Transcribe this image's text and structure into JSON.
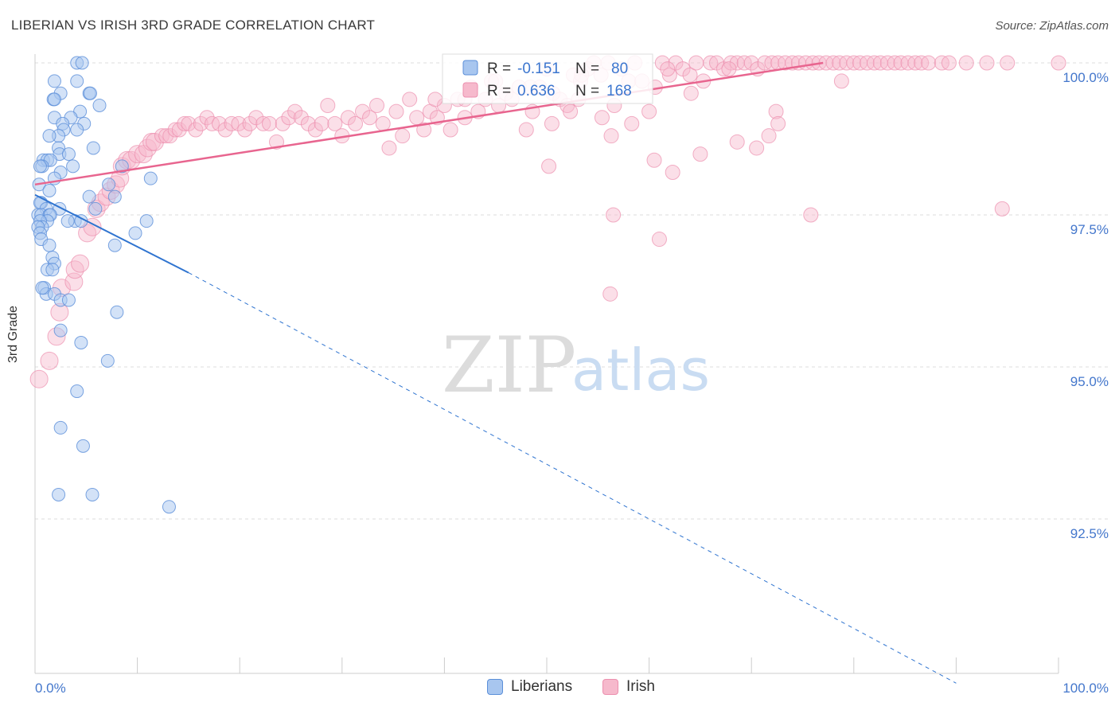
{
  "title": "LIBERIAN VS IRISH 3RD GRADE CORRELATION CHART",
  "source": "Source: ZipAtlas.com",
  "watermark": {
    "zip": "ZIP",
    "atlas": "atlas"
  },
  "colors": {
    "blue_fill": "#a8c6ef",
    "blue_stroke": "#5b8fd9",
    "blue_line": "#2f74d0",
    "pink_fill": "#f6b9cc",
    "pink_stroke": "#ec8fae",
    "pink_line": "#e8658f",
    "tick_text": "#4477cc",
    "grid": "#dddddd"
  },
  "stats": {
    "r_label": "R =",
    "n_label": "N =",
    "rows": [
      {
        "series": "Liberians",
        "r": "-0.151",
        "n": "80"
      },
      {
        "series": "Irish",
        "r": "0.636",
        "n": "168"
      }
    ]
  },
  "legend": {
    "items": [
      "Liberians",
      "Irish"
    ]
  },
  "chart_data": {
    "type": "scatter",
    "title": "LIBERIAN VS IRISH 3RD GRADE CORRELATION CHART",
    "xlabel": "",
    "ylabel": "3rd Grade",
    "xlim": [
      0,
      100
    ],
    "ylim": [
      89.8,
      100.4
    ],
    "x_tick_labels": [
      "0.0%",
      "100.0%"
    ],
    "y_ticks": [
      {
        "value": 100.0,
        "label": "100.0%"
      },
      {
        "value": 97.5,
        "label": "97.5%"
      },
      {
        "value": 95.0,
        "label": "95.0%"
      },
      {
        "value": 92.5,
        "label": "92.5%"
      }
    ],
    "series": [
      {
        "name": "Liberians",
        "r": -0.151,
        "n": 80,
        "trend": {
          "x0": 0,
          "y0": 97.83,
          "x1": 15,
          "y1": 96.55,
          "dashed_to_x": 90,
          "dashed_to_y": 89.8
        },
        "points": [
          [
            4.1,
            100.0
          ],
          [
            4.6,
            100.0
          ],
          [
            1.9,
            99.7
          ],
          [
            4.1,
            99.7
          ],
          [
            2.5,
            99.5
          ],
          [
            5.3,
            99.5
          ],
          [
            5.4,
            99.5
          ],
          [
            1.8,
            99.4
          ],
          [
            1.9,
            99.4
          ],
          [
            6.3,
            99.3
          ],
          [
            4.4,
            99.2
          ],
          [
            1.9,
            99.1
          ],
          [
            3.5,
            99.1
          ],
          [
            2.7,
            99.0
          ],
          [
            4.8,
            99.0
          ],
          [
            2.8,
            98.9
          ],
          [
            4.1,
            98.9
          ],
          [
            2.3,
            98.8
          ],
          [
            1.4,
            98.8
          ],
          [
            5.7,
            98.6
          ],
          [
            2.3,
            98.6
          ],
          [
            2.4,
            98.5
          ],
          [
            3.3,
            98.5
          ],
          [
            0.8,
            98.4
          ],
          [
            1.2,
            98.4
          ],
          [
            1.5,
            98.4
          ],
          [
            0.7,
            98.3
          ],
          [
            0.5,
            98.3
          ],
          [
            8.5,
            98.3
          ],
          [
            3.7,
            98.3
          ],
          [
            2.5,
            98.2
          ],
          [
            11.3,
            98.1
          ],
          [
            1.9,
            98.1
          ],
          [
            0.4,
            98.0
          ],
          [
            7.2,
            98.0
          ],
          [
            1.4,
            97.9
          ],
          [
            5.3,
            97.8
          ],
          [
            7.8,
            97.8
          ],
          [
            0.6,
            97.7
          ],
          [
            0.5,
            97.7
          ],
          [
            2.4,
            97.6
          ],
          [
            1.1,
            97.6
          ],
          [
            5.9,
            97.6
          ],
          [
            0.3,
            97.5
          ],
          [
            0.6,
            97.5
          ],
          [
            1.4,
            97.5
          ],
          [
            1.5,
            97.5
          ],
          [
            3.9,
            97.4
          ],
          [
            10.9,
            97.4
          ],
          [
            3.2,
            97.4
          ],
          [
            4.5,
            97.4
          ],
          [
            1.2,
            97.4
          ],
          [
            0.5,
            97.4
          ],
          [
            0.7,
            97.3
          ],
          [
            0.3,
            97.3
          ],
          [
            0.5,
            97.2
          ],
          [
            9.8,
            97.2
          ],
          [
            0.6,
            97.1
          ],
          [
            1.4,
            97.0
          ],
          [
            7.8,
            97.0
          ],
          [
            1.7,
            96.8
          ],
          [
            1.9,
            96.7
          ],
          [
            1.2,
            96.6
          ],
          [
            1.7,
            96.6
          ],
          [
            0.9,
            96.3
          ],
          [
            1.1,
            96.2
          ],
          [
            1.9,
            96.2
          ],
          [
            2.5,
            96.1
          ],
          [
            3.3,
            96.1
          ],
          [
            8.0,
            95.9
          ],
          [
            2.5,
            95.6
          ],
          [
            4.5,
            95.4
          ],
          [
            7.1,
            95.1
          ],
          [
            4.1,
            94.6
          ],
          [
            2.5,
            94.0
          ],
          [
            4.7,
            93.7
          ],
          [
            2.3,
            92.9
          ],
          [
            5.6,
            92.9
          ],
          [
            13.1,
            92.7
          ],
          [
            0.7,
            96.3
          ]
        ]
      },
      {
        "name": "Irish",
        "r": 0.636,
        "n": 168,
        "trend": {
          "x0": 0,
          "y0": 98.0,
          "x1": 77,
          "y1": 100.0
        },
        "points": [
          [
            0.4,
            94.8
          ],
          [
            1.4,
            95.1
          ],
          [
            2.1,
            95.5
          ],
          [
            2.4,
            95.9
          ],
          [
            2.6,
            96.3
          ],
          [
            3.8,
            96.4
          ],
          [
            3.9,
            96.6
          ],
          [
            4.4,
            96.7
          ],
          [
            5.1,
            97.2
          ],
          [
            5.6,
            97.3
          ],
          [
            6.0,
            97.6
          ],
          [
            6.4,
            97.7
          ],
          [
            7.0,
            97.8
          ],
          [
            7.4,
            97.9
          ],
          [
            7.9,
            98.0
          ],
          [
            8.3,
            98.1
          ],
          [
            8.5,
            98.3
          ],
          [
            9.0,
            98.4
          ],
          [
            9.4,
            98.4
          ],
          [
            10.0,
            98.5
          ],
          [
            10.6,
            98.5
          ],
          [
            11.0,
            98.6
          ],
          [
            11.4,
            98.7
          ],
          [
            11.7,
            98.7
          ],
          [
            12.4,
            98.8
          ],
          [
            12.8,
            98.8
          ],
          [
            13.2,
            98.8
          ],
          [
            13.7,
            98.9
          ],
          [
            14.1,
            98.9
          ],
          [
            14.6,
            99.0
          ],
          [
            15.0,
            99.0
          ],
          [
            15.7,
            98.9
          ],
          [
            16.2,
            99.0
          ],
          [
            16.8,
            99.1
          ],
          [
            17.3,
            99.0
          ],
          [
            18.0,
            99.0
          ],
          [
            18.6,
            98.9
          ],
          [
            19.2,
            99.0
          ],
          [
            19.9,
            99.0
          ],
          [
            20.5,
            98.9
          ],
          [
            21.0,
            99.0
          ],
          [
            21.6,
            99.1
          ],
          [
            22.3,
            99.0
          ],
          [
            22.9,
            99.0
          ],
          [
            23.6,
            98.7
          ],
          [
            24.2,
            99.0
          ],
          [
            24.8,
            99.1
          ],
          [
            25.4,
            99.2
          ],
          [
            26.0,
            99.1
          ],
          [
            26.7,
            99.0
          ],
          [
            27.4,
            98.9
          ],
          [
            28.0,
            99.0
          ],
          [
            28.6,
            99.3
          ],
          [
            29.3,
            99.0
          ],
          [
            30.0,
            98.8
          ],
          [
            30.6,
            99.1
          ],
          [
            31.3,
            99.0
          ],
          [
            32.0,
            99.2
          ],
          [
            32.7,
            99.1
          ],
          [
            33.4,
            99.3
          ],
          [
            34.0,
            99.0
          ],
          [
            34.6,
            98.6
          ],
          [
            35.3,
            99.2
          ],
          [
            35.9,
            98.8
          ],
          [
            36.6,
            99.4
          ],
          [
            37.3,
            99.1
          ],
          [
            38.0,
            98.9
          ],
          [
            38.6,
            99.2
          ],
          [
            39.3,
            99.1
          ],
          [
            40.0,
            99.3
          ],
          [
            40.6,
            98.9
          ],
          [
            41.3,
            99.4
          ],
          [
            42.0,
            99.1
          ],
          [
            42.6,
            99.6
          ],
          [
            43.3,
            99.2
          ],
          [
            44.0,
            99.4
          ],
          [
            44.6,
            99.7
          ],
          [
            45.3,
            99.3
          ],
          [
            46.0,
            99.5
          ],
          [
            46.6,
            99.4
          ],
          [
            47.3,
            99.6
          ],
          [
            48.0,
            98.9
          ],
          [
            48.6,
            99.2
          ],
          [
            49.3,
            99.6
          ],
          [
            50.0,
            99.9
          ],
          [
            50.6,
            99.5
          ],
          [
            51.3,
            99.4
          ],
          [
            52.0,
            99.3
          ],
          [
            52.6,
            99.8
          ],
          [
            53.3,
            99.7
          ],
          [
            54.0,
            99.9
          ],
          [
            54.6,
            100.0
          ],
          [
            55.3,
            99.8
          ],
          [
            56.0,
            100.0
          ],
          [
            56.6,
            99.3
          ],
          [
            57.3,
            99.9
          ],
          [
            58.0,
            99.7
          ],
          [
            58.6,
            100.0
          ],
          [
            59.3,
            99.7
          ],
          [
            60.0,
            99.2
          ],
          [
            60.6,
            99.6
          ],
          [
            61.3,
            100.0
          ],
          [
            62.0,
            99.8
          ],
          [
            62.6,
            100.0
          ],
          [
            63.3,
            99.9
          ],
          [
            64.0,
            99.8
          ],
          [
            64.6,
            100.0
          ],
          [
            65.3,
            99.7
          ],
          [
            66.0,
            100.0
          ],
          [
            66.6,
            100.0
          ],
          [
            67.3,
            99.9
          ],
          [
            68.0,
            100.0
          ],
          [
            68.6,
            100.0
          ],
          [
            69.3,
            100.0
          ],
          [
            70.0,
            100.0
          ],
          [
            70.6,
            99.9
          ],
          [
            71.3,
            100.0
          ],
          [
            72.0,
            100.0
          ],
          [
            72.6,
            100.0
          ],
          [
            73.3,
            100.0
          ],
          [
            74.0,
            100.0
          ],
          [
            74.6,
            100.0
          ],
          [
            75.3,
            100.0
          ],
          [
            76.0,
            100.0
          ],
          [
            76.6,
            100.0
          ],
          [
            77.3,
            100.0
          ],
          [
            78.0,
            100.0
          ],
          [
            78.6,
            100.0
          ],
          [
            79.3,
            100.0
          ],
          [
            80.0,
            100.0
          ],
          [
            80.6,
            100.0
          ],
          [
            81.3,
            100.0
          ],
          [
            82.0,
            100.0
          ],
          [
            82.6,
            100.0
          ],
          [
            83.3,
            100.0
          ],
          [
            84.0,
            100.0
          ],
          [
            84.6,
            100.0
          ],
          [
            85.3,
            100.0
          ],
          [
            86.0,
            100.0
          ],
          [
            86.6,
            100.0
          ],
          [
            87.3,
            100.0
          ],
          [
            88.6,
            100.0
          ],
          [
            89.3,
            100.0
          ],
          [
            91.0,
            100.0
          ],
          [
            93.0,
            100.0
          ],
          [
            100.0,
            100.0
          ],
          [
            78.8,
            99.7
          ],
          [
            95.0,
            100.0
          ],
          [
            50.2,
            98.3
          ],
          [
            53.1,
            99.4
          ],
          [
            55.4,
            99.1
          ],
          [
            58.3,
            99.0
          ],
          [
            62.3,
            98.2
          ],
          [
            65.0,
            98.5
          ],
          [
            68.6,
            98.7
          ],
          [
            70.5,
            98.6
          ],
          [
            72.4,
            99.2
          ],
          [
            56.3,
            98.8
          ],
          [
            50.5,
            99.0
          ],
          [
            42.0,
            99.4
          ],
          [
            39.1,
            99.4
          ],
          [
            48.4,
            99.6
          ],
          [
            60.5,
            98.4
          ],
          [
            56.5,
            97.5
          ],
          [
            61.0,
            97.1
          ],
          [
            71.7,
            98.8
          ],
          [
            72.6,
            99.0
          ],
          [
            75.8,
            97.5
          ],
          [
            94.5,
            97.6
          ],
          [
            56.2,
            96.2
          ],
          [
            53.4,
            99.8
          ],
          [
            67.8,
            99.9
          ],
          [
            64.1,
            99.5
          ],
          [
            52.3,
            99.2
          ],
          [
            61.8,
            99.9
          ],
          [
            45.0,
            99.7
          ]
        ]
      }
    ]
  }
}
